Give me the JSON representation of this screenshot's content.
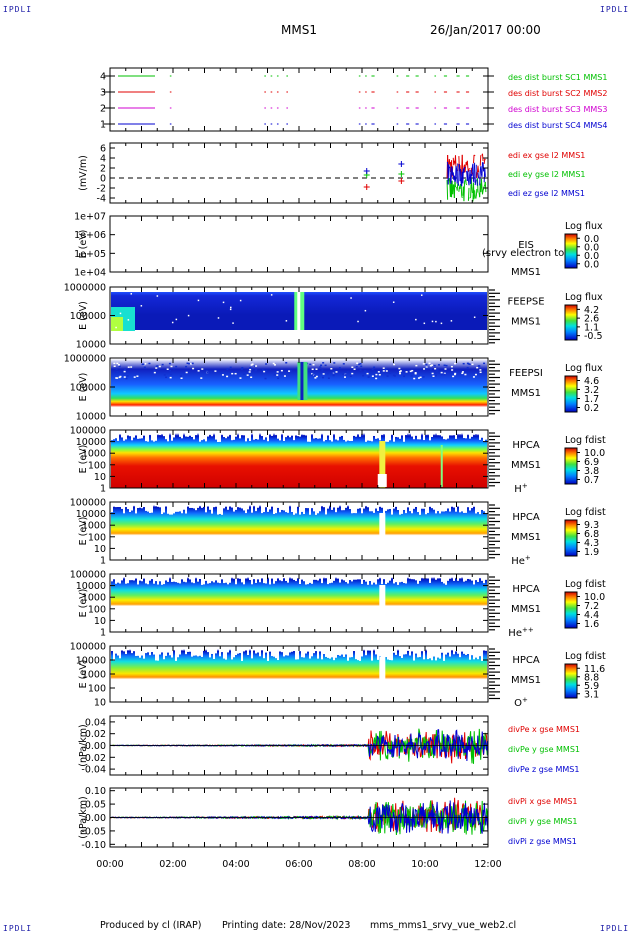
{
  "header": {
    "corner_tl": "IPDLI",
    "corner_tr": "IPDLI",
    "corner_bl": "IPDLI",
    "corner_br": "IPDLI",
    "spacecraft": "MMS1",
    "date": "26/Jan/2017 00:00"
  },
  "footer": {
    "producer": "Produced by cl (IRAP)",
    "printing": "Printing date: 28/Nov/2023",
    "file": "mms_mms1_srvy_vue_web2.cl"
  },
  "x_ticks": [
    "00:00",
    "02:00",
    "04:00",
    "06:00",
    "08:00",
    "10:00",
    "12:00"
  ],
  "colors": {
    "red": "#e00000",
    "green": "#00c000",
    "blue": "#0000d0",
    "magenta": "#d000d0"
  },
  "chart_data": [
    {
      "type": "scatter",
      "panel": "burst",
      "x_range_hours": [
        0,
        12
      ],
      "yticks": [
        "4",
        "3",
        "2",
        "1"
      ],
      "series": [
        {
          "name": "des dist burst SC1 MMS1",
          "color": "#00c000",
          "level": 4
        },
        {
          "name": "des dist burst SC2 MMS2",
          "color": "#e00000",
          "level": 3
        },
        {
          "name": "des dist burst SC3 MMS3",
          "color": "#d000d0",
          "level": 2
        },
        {
          "name": "des dist burst SC4 MMS4",
          "color": "#0000d0",
          "level": 1
        }
      ],
      "burst_intervals_hours": [
        [
          0.2,
          1.0
        ],
        [
          1.9,
          1.95
        ],
        [
          4.9,
          4.95
        ],
        [
          5.1,
          5.15
        ],
        [
          5.3,
          5.35
        ],
        [
          5.6,
          5.65
        ],
        [
          7.9,
          7.95
        ],
        [
          8.1,
          8.15
        ],
        [
          8.3,
          8.4
        ],
        [
          9.1,
          9.15
        ],
        [
          9.4,
          9.5
        ],
        [
          9.7,
          9.8
        ],
        [
          10.3,
          10.35
        ],
        [
          10.6,
          10.7
        ],
        [
          11.0,
          11.1
        ],
        [
          11.3,
          11.4
        ]
      ]
    },
    {
      "type": "line",
      "panel": "edi",
      "ylabel": "(mV/m)",
      "ylim": [
        -5,
        7
      ],
      "yticks": [
        "6",
        "4",
        "2",
        "0",
        "-2",
        "-4"
      ],
      "series": [
        {
          "name": "edi ex gse l2 MMS1",
          "color": "#e00000",
          "points": [
            [
              8.15,
              -1.8
            ],
            [
              9.25,
              -0.6
            ]
          ]
        },
        {
          "name": "edi ey gse l2 MMS1",
          "color": "#00c000",
          "points": [
            [
              8.15,
              0.6
            ],
            [
              9.25,
              0.8
            ]
          ]
        },
        {
          "name": "edi ez gse l2 MMS1",
          "color": "#0000d0",
          "points": [
            [
              8.15,
              1.4
            ],
            [
              9.25,
              2.8
            ]
          ]
        }
      ]
    },
    {
      "type": "heatmap",
      "panel": "eis",
      "ylabel": "E (eV)",
      "yticks": [
        "1e+07",
        "1e+06",
        "1e+05",
        "1e+04"
      ],
      "instrument": [
        "EIS",
        "MMS1"
      ],
      "species_overlay": "(srvy electron to",
      "cbar_title": "Log flux",
      "cbar_ticks": [
        "0.0",
        "0.0",
        "0.0",
        "0.0"
      ]
    },
    {
      "type": "heatmap",
      "panel": "feepse",
      "ylabel": "E (eV)",
      "yticks": [
        "1000000",
        "100000",
        "10000"
      ],
      "instrument": [
        "FEEPSE",
        "MMS1"
      ],
      "cbar_title": "Log flux",
      "cbar_ticks": [
        "4.2",
        "2.6",
        "1.1",
        "-0.5"
      ]
    },
    {
      "type": "heatmap",
      "panel": "feepsi",
      "ylabel": "E (eV)",
      "yticks": [
        "1000000",
        "100000",
        "10000"
      ],
      "instrument": [
        "FEEPSI",
        "MMS1"
      ],
      "cbar_title": "Log flux",
      "cbar_ticks": [
        "4.6",
        "3.2",
        "1.7",
        "0.2"
      ]
    },
    {
      "type": "heatmap",
      "panel": "hpca_h",
      "ylabel": "E (eV)",
      "yticks": [
        "100000",
        "10000",
        "1000",
        "100",
        "10",
        "1"
      ],
      "instrument": [
        "HPCA",
        "MMS1"
      ],
      "species": "H",
      "species_sup": "+",
      "cbar_title": "Log fdist",
      "cbar_ticks": [
        "10.0",
        "6.9",
        "3.8",
        "0.7"
      ]
    },
    {
      "type": "heatmap",
      "panel": "hpca_he",
      "ylabel": "E (eV)",
      "yticks": [
        "100000",
        "10000",
        "1000",
        "100",
        "10",
        "1"
      ],
      "instrument": [
        "HPCA",
        "MMS1"
      ],
      "species": "He",
      "species_sup": "+",
      "cbar_title": "Log fdist",
      "cbar_ticks": [
        "9.3",
        "6.8",
        "4.3",
        "1.9"
      ]
    },
    {
      "type": "heatmap",
      "panel": "hpca_he2",
      "ylabel": "E (eV)",
      "yticks": [
        "100000",
        "10000",
        "1000",
        "100",
        "10",
        "1"
      ],
      "instrument": [
        "HPCA",
        "MMS1"
      ],
      "species": "He",
      "species_sup": "++",
      "cbar_title": "Log fdist",
      "cbar_ticks": [
        "10.0",
        "7.2",
        "4.4",
        "1.6"
      ]
    },
    {
      "type": "heatmap",
      "panel": "hpca_o",
      "ylabel": "E (eV)",
      "yticks": [
        "100000",
        "10000",
        "1000",
        "100",
        "10"
      ],
      "instrument": [
        "HPCA",
        "MMS1"
      ],
      "species": "O",
      "species_sup": "+",
      "cbar_title": "Log fdist",
      "cbar_ticks": [
        "11.6",
        "8.8",
        "5.9",
        "3.1"
      ]
    },
    {
      "type": "line",
      "panel": "divpe",
      "ylabel": "(nPa/km)",
      "ylim": [
        -0.05,
        0.05
      ],
      "yticks": [
        "0.04",
        "0.02",
        "0.00",
        "-0.02",
        "-0.04"
      ],
      "series": [
        {
          "name": "divPe x gse MMS1",
          "color": "#e00000"
        },
        {
          "name": "divPe y gse MMS1",
          "color": "#00c000"
        },
        {
          "name": "divPe z gse MMS1",
          "color": "#0000d0"
        }
      ]
    },
    {
      "type": "line",
      "panel": "divpi",
      "ylabel": "(nPa/km)",
      "ylim": [
        -0.11,
        0.11
      ],
      "yticks": [
        "0.10",
        "0.05",
        "0.00",
        "-0.05",
        "-0.10"
      ],
      "series": [
        {
          "name": "divPi x gse MMS1",
          "color": "#e00000"
        },
        {
          "name": "divPi y gse MMS1",
          "color": "#00c000"
        },
        {
          "name": "divPi z gse MMS1",
          "color": "#0000d0"
        }
      ]
    }
  ]
}
